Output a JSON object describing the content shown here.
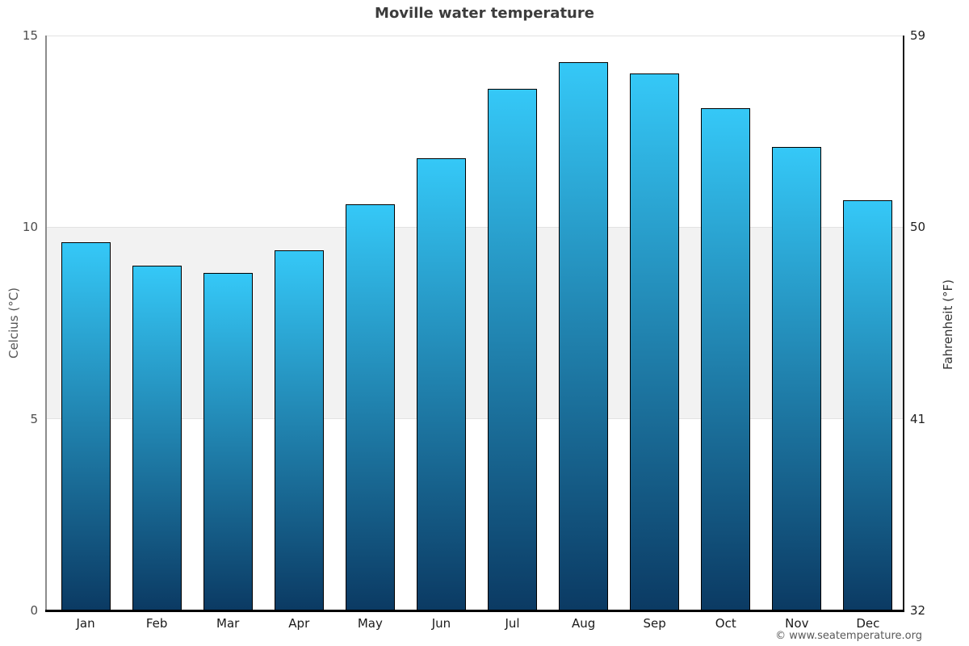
{
  "page": {
    "footer": "© www.seatemperature.org"
  },
  "chart_data": {
    "type": "bar",
    "title": "Moville water temperature",
    "ylabel_left": "Celcius (°C)",
    "ylabel_right": "Fahrenheit (°F)",
    "categories": [
      "Jan",
      "Feb",
      "Mar",
      "Apr",
      "May",
      "Jun",
      "Jul",
      "Aug",
      "Sep",
      "Oct",
      "Nov",
      "Dec"
    ],
    "values": [
      9.6,
      9.0,
      8.8,
      9.4,
      10.6,
      11.8,
      13.6,
      14.3,
      14.0,
      13.1,
      12.1,
      10.7
    ],
    "ylim": [
      0,
      15
    ],
    "grid": "horizontal",
    "legend": "none",
    "yticks_left": [
      {
        "value": 15,
        "label": "15"
      },
      {
        "value": 10,
        "label": "10"
      },
      {
        "value": 5,
        "label": "5"
      },
      {
        "value": 0,
        "label": "0"
      }
    ],
    "yticks_right": [
      {
        "value": 15,
        "label": "59"
      },
      {
        "value": 10,
        "label": "50"
      },
      {
        "value": 5,
        "label": "41"
      },
      {
        "value": 0,
        "label": "32"
      }
    ],
    "gridline_values": [
      15,
      10,
      5
    ],
    "band": {
      "from": 5,
      "to": 10
    },
    "colors": {
      "bar_gradient_top": "#35c8f7",
      "bar_gradient_bottom": "#0b3a63",
      "bar_border": "#000000",
      "band_fill": "#f2f2f2",
      "gridline": "#e2e2e2",
      "title_text": "#3c3c3c",
      "axis_left_line": "#8c8c8c",
      "axis_bottom_line": "#000000"
    }
  }
}
